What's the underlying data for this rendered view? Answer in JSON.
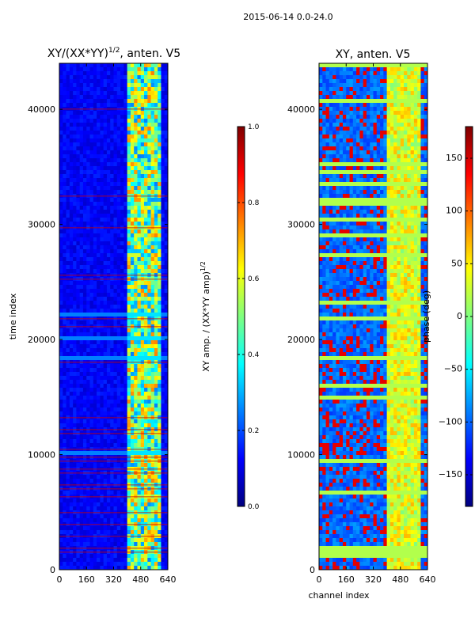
{
  "figure_title": "2015-06-14 0.0-24.0",
  "colors": {
    "jet": [
      "#00007f",
      "#0000ff",
      "#007fff",
      "#00ffff",
      "#7fff7f",
      "#ffff00",
      "#ff7f00",
      "#ff0000",
      "#7f0000"
    ],
    "background": "#ffffff",
    "axis": "#000000"
  },
  "chart_data": [
    {
      "type": "heatmap",
      "title": "XY/(XX*YY)",
      "title_exponent": "1/2",
      "title_suffix": ", anten. V5",
      "xlabel": "",
      "ylabel": "time index",
      "xlim": [
        0,
        640
      ],
      "ylim": [
        0,
        44000
      ],
      "xticks": [
        0,
        160,
        320,
        480,
        640
      ],
      "xtick_labels": [
        "0",
        "160",
        "320",
        "480",
        "640"
      ],
      "yticks": [
        0,
        10000,
        20000,
        30000,
        40000
      ],
      "ytick_labels": [
        "0",
        "10000",
        "20000",
        "30000",
        "40000"
      ],
      "colorbar": {
        "label": "XY amp. / (XX*YY amp)",
        "label_exponent": "1/2",
        "min": 0.0,
        "max": 1.0,
        "ticks": [
          0.0,
          0.2,
          0.4,
          0.6,
          0.8,
          1.0
        ],
        "tick_labels": [
          "0.0",
          "0.2",
          "0.4",
          "0.6",
          "0.8",
          "1.0"
        ]
      },
      "description": "Mostly low amplitude (~0.1) for channels 0-400; higher, variable amplitude (0.3-0.7) in channels ~400-600; thin red horizontal flag lines at many time indices."
    },
    {
      "type": "heatmap",
      "title": "XY, anten. V5",
      "xlabel": "channel index",
      "ylabel": "",
      "xlim": [
        0,
        640
      ],
      "ylim": [
        0,
        44000
      ],
      "xticks": [
        0,
        160,
        320,
        480,
        640
      ],
      "xtick_labels": [
        "0",
        "160",
        "320",
        "480",
        "640"
      ],
      "yticks": [
        0,
        10000,
        20000,
        30000,
        40000
      ],
      "ytick_labels": [
        "0",
        "10000",
        "20000",
        "30000",
        "40000"
      ],
      "colorbar": {
        "label": "phase (deg)",
        "min": -180,
        "max": 180,
        "ticks": [
          -150,
          -100,
          -50,
          0,
          50,
          100,
          150
        ],
        "tick_labels": [
          "−150",
          "−100",
          "−50",
          "0",
          "50",
          "100",
          "150"
        ]
      },
      "description": "Phase map dominated by blue (~-150 deg) with red speckle in channels 0-400 and green/yellow (0 to 50 deg) in channels ~400-600; many horizontal green banded rows."
    }
  ]
}
